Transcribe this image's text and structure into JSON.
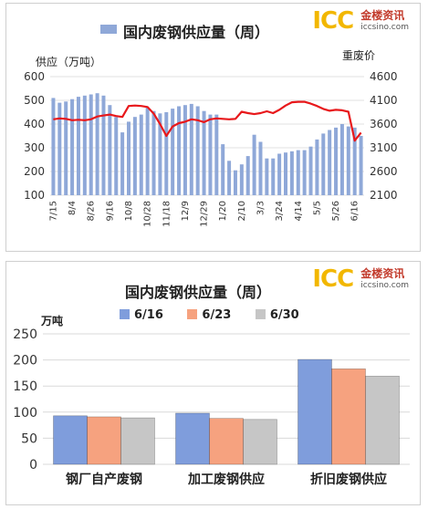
{
  "chart_data": [
    {
      "type": "bar+line",
      "title": "国内废钢供应量（周）",
      "ylabel_left": "供应（万吨）",
      "ylabel_right": "重废价",
      "ylim_left": [
        100,
        600
      ],
      "yticks_left": [
        100,
        200,
        300,
        400,
        500,
        600
      ],
      "ylim_right": [
        2100,
        4600
      ],
      "yticks_right": [
        2100,
        2600,
        3100,
        3600,
        4100,
        4600
      ],
      "x_tick_labels": [
        "7/15",
        "8/4",
        "8/26",
        "9/16",
        "10/8",
        "10/28",
        "11/18",
        "12/9",
        "12/29",
        "1/20",
        "2/10",
        "3/3",
        "3/24",
        "4/14",
        "5/5",
        "5/26",
        "6/16"
      ],
      "x_tick_index": [
        0,
        3,
        6,
        9,
        12,
        15,
        18,
        21,
        24,
        27,
        30,
        33,
        36,
        39,
        42,
        45,
        48
      ],
      "grid": "horizontal",
      "series": [
        {
          "name": "国内废钢供应量（周）",
          "kind": "bar",
          "axis": "left",
          "color": "#8fa8d8",
          "values": [
            510,
            490,
            495,
            505,
            515,
            520,
            525,
            530,
            520,
            480,
            430,
            365,
            410,
            430,
            440,
            470,
            455,
            445,
            450,
            465,
            475,
            480,
            485,
            475,
            455,
            440,
            440,
            315,
            245,
            205,
            230,
            265,
            355,
            325,
            255,
            255,
            275,
            280,
            285,
            290,
            290,
            305,
            335,
            360,
            375,
            385,
            400,
            390,
            385,
            350
          ]
        },
        {
          "name": "重废价",
          "kind": "line",
          "axis": "right",
          "color": "#e8181b",
          "values": [
            3700,
            3720,
            3710,
            3680,
            3690,
            3680,
            3700,
            3760,
            3780,
            3800,
            3770,
            3750,
            3980,
            3990,
            3980,
            3960,
            3820,
            3600,
            3350,
            3550,
            3620,
            3650,
            3700,
            3680,
            3640,
            3700,
            3720,
            3710,
            3700,
            3710,
            3860,
            3830,
            3810,
            3830,
            3870,
            3830,
            3900,
            3990,
            4060,
            4070,
            4070,
            4030,
            3980,
            3920,
            3880,
            3900,
            3890,
            3860,
            3250,
            3420
          ]
        }
      ]
    },
    {
      "type": "bar",
      "title": "国内废钢供应量（周）",
      "ylabel": "万吨",
      "ylim": [
        0,
        250
      ],
      "yticks": [
        0,
        50,
        100,
        150,
        200,
        250
      ],
      "grid": "horizontal",
      "legend_position": "top",
      "categories": [
        "钢厂自产废钢",
        "加工废钢供应",
        "折旧废钢供应"
      ],
      "series": [
        {
          "name": "6/16",
          "color": "#7f9ddc",
          "values": [
            93,
            98,
            201
          ]
        },
        {
          "name": "6/23",
          "color": "#f6a27f",
          "values": [
            91,
            88,
            183
          ]
        },
        {
          "name": "6/30",
          "color": "#c6c6c6",
          "values": [
            89,
            86,
            169
          ]
        }
      ]
    }
  ],
  "logo": {
    "mark": "ICC",
    "cn": "金楼资讯",
    "url": "iccsino.com"
  }
}
